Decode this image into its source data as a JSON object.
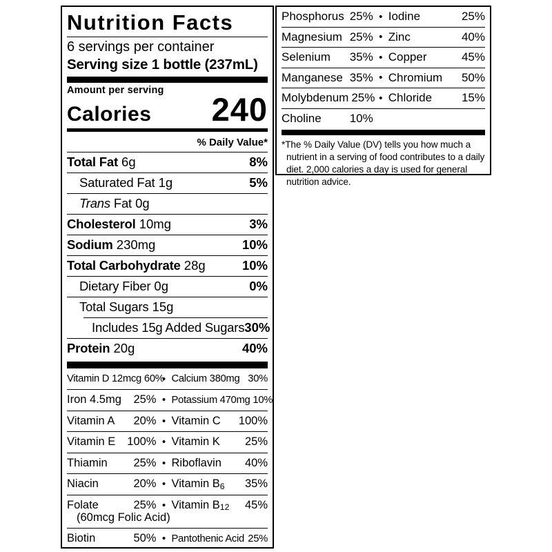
{
  "page": {
    "background": "#ffffff",
    "ink": "#000000"
  },
  "label": {
    "title": "Nutrition Facts",
    "servings_per_container": "6 servings per container",
    "serving_size": "Serving size 1 bottle (237mL)",
    "amount_per_serving": "Amount per serving",
    "calories_label": "Calories",
    "calories_value": "240",
    "daily_value_header": "% Daily Value*",
    "nutrients": [
      {
        "name": "Total Fat",
        "amount": "6g",
        "dv": "8%",
        "bold": true,
        "indent": 0
      },
      {
        "name": "Saturated Fat",
        "amount": "1g",
        "dv": "5%",
        "bold": false,
        "indent": 1
      },
      {
        "name": "Trans Fat",
        "amount": "0g",
        "dv": "",
        "bold": false,
        "indent": 1,
        "italic_word": "Trans"
      },
      {
        "name": "Cholesterol",
        "amount": "10mg",
        "dv": "3%",
        "bold": true,
        "indent": 0
      },
      {
        "name": "Sodium",
        "amount": "230mg",
        "dv": "10%",
        "bold": true,
        "indent": 0
      },
      {
        "name": "Total Carbohydrate",
        "amount": "28g",
        "dv": "10%",
        "bold": true,
        "indent": 0
      },
      {
        "name": "Dietary Fiber",
        "amount": "0g",
        "dv": "0%",
        "bold": false,
        "indent": 1
      },
      {
        "name": "Total Sugars",
        "amount": "15g",
        "dv": "",
        "bold": false,
        "indent": 1
      },
      {
        "name": "Includes 15g Added Sugars",
        "amount": "",
        "dv": "30%",
        "bold": false,
        "indent": 2,
        "sep_indented": true
      },
      {
        "name": "Protein",
        "amount": "20g",
        "dv": "40%",
        "bold": true,
        "indent": 0
      }
    ],
    "micronutrients": [
      {
        "left": {
          "name": "Vitamin D 12mcg",
          "dv": "60%"
        },
        "right": {
          "name": "Calcium 380mg",
          "dv": "30%"
        }
      },
      {
        "left": {
          "name": "Iron 4.5mg",
          "dv": "25%"
        },
        "right": {
          "name": "Potassium 470mg",
          "dv": "10%"
        }
      },
      {
        "left": {
          "name": "Vitamin A",
          "dv": "20%"
        },
        "right": {
          "name": "Vitamin C",
          "dv": "100%"
        }
      },
      {
        "left": {
          "name": "Vitamin E",
          "dv": "100%"
        },
        "right": {
          "name": "Vitamin K",
          "dv": "25%"
        }
      },
      {
        "left": {
          "name": "Thiamin",
          "dv": "25%"
        },
        "right": {
          "name": "Riboflavin",
          "dv": "40%"
        }
      },
      {
        "left": {
          "name": "Niacin",
          "dv": "20%"
        },
        "right": {
          "name": "Vitamin B",
          "sub": "6",
          "dv": "35%"
        }
      },
      {
        "left": {
          "name": "Folate",
          "dv": "25%",
          "note": "(60mcg Folic Acid)"
        },
        "right": {
          "name": "Vitamin B",
          "sub": "12",
          "dv": "45%"
        }
      },
      {
        "left": {
          "name": "Biotin",
          "dv": "50%"
        },
        "right": {
          "name": "Pantothenic Acid",
          "dv": "25%"
        }
      }
    ],
    "minerals": [
      {
        "left": {
          "name": "Phosphorus",
          "dv": "25%"
        },
        "right": {
          "name": "Iodine",
          "dv": "25%"
        }
      },
      {
        "left": {
          "name": "Magnesium",
          "dv": "25%"
        },
        "right": {
          "name": "Zinc",
          "dv": "40%"
        }
      },
      {
        "left": {
          "name": "Selenium",
          "dv": "35%"
        },
        "right": {
          "name": "Copper",
          "dv": "45%"
        }
      },
      {
        "left": {
          "name": "Manganese",
          "dv": "35%"
        },
        "right": {
          "name": "Chromium",
          "dv": "50%"
        }
      },
      {
        "left": {
          "name": "Molybdenum",
          "dv": "25%"
        },
        "right": {
          "name": "Chloride",
          "dv": "15%"
        }
      },
      {
        "left": {
          "name": "Choline",
          "dv": "10%"
        }
      }
    ],
    "footnote": "*The % Daily Value (DV) tells you how much a nutrient in a serving of food contributes to a daily diet. 2,000 calories a day is used for general nutrition advice."
  }
}
